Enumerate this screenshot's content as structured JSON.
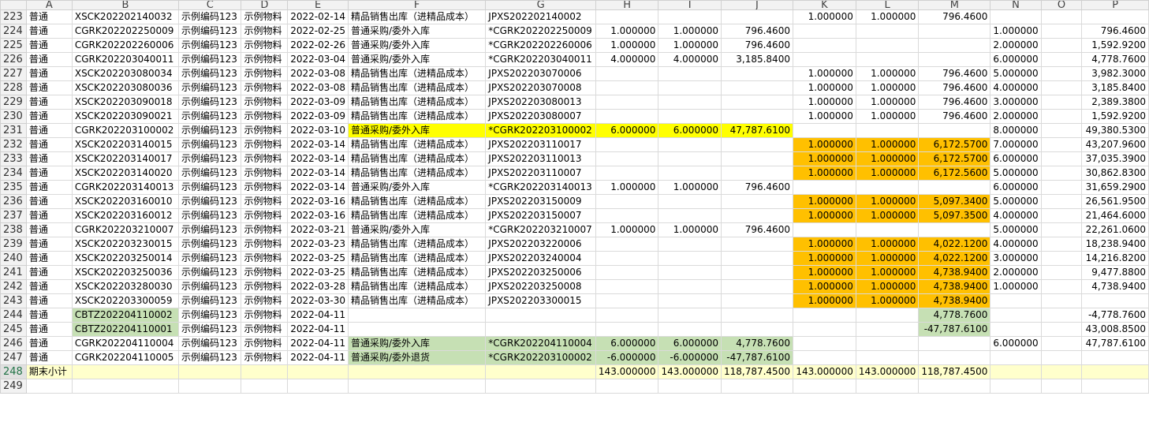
{
  "columns": [
    "A",
    "B",
    "C",
    "D",
    "E",
    "F",
    "G",
    "H",
    "I",
    "J",
    "K",
    "L",
    "M",
    "N",
    "O",
    "P"
  ],
  "rows": [
    {
      "n": "223",
      "cells": [
        "普通",
        "XSCK202202140032",
        "示例编码123",
        "示例物料",
        "2022-02-14",
        "精品销售出库（进精品成本）",
        "JPXS202202140002",
        "",
        "",
        "",
        "1.000000",
        "1.000000",
        "796.4600",
        "",
        "",
        ""
      ]
    },
    {
      "n": "224",
      "cells": [
        "普通",
        "CGRK202202250009",
        "示例编码123",
        "示例物料",
        "2022-02-25",
        "普通采购/委外入库",
        "*CGRK202202250009",
        "1.000000",
        "1.000000",
        "796.4600",
        "",
        "",
        "",
        "1.000000",
        "",
        "796.4600"
      ]
    },
    {
      "n": "225",
      "cells": [
        "普通",
        "CGRK202202260006",
        "示例编码123",
        "示例物料",
        "2022-02-26",
        "普通采购/委外入库",
        "*CGRK202202260006",
        "1.000000",
        "1.000000",
        "796.4600",
        "",
        "",
        "",
        "2.000000",
        "",
        "1,592.9200"
      ]
    },
    {
      "n": "226",
      "cells": [
        "普通",
        "CGRK202203040011",
        "示例编码123",
        "示例物料",
        "2022-03-04",
        "普通采购/委外入库",
        "*CGRK202203040011",
        "4.000000",
        "4.000000",
        "3,185.8400",
        "",
        "",
        "",
        "6.000000",
        "",
        "4,778.7600"
      ]
    },
    {
      "n": "227",
      "cells": [
        "普通",
        "XSCK202203080034",
        "示例编码123",
        "示例物料",
        "2022-03-08",
        "精品销售出库（进精品成本）",
        "JPXS202203070006",
        "",
        "",
        "",
        "1.000000",
        "1.000000",
        "796.4600",
        "5.000000",
        "",
        "3,982.3000"
      ]
    },
    {
      "n": "228",
      "cells": [
        "普通",
        "XSCK202203080036",
        "示例编码123",
        "示例物料",
        "2022-03-08",
        "精品销售出库（进精品成本）",
        "JPXS202203070008",
        "",
        "",
        "",
        "1.000000",
        "1.000000",
        "796.4600",
        "4.000000",
        "",
        "3,185.8400"
      ]
    },
    {
      "n": "229",
      "cells": [
        "普通",
        "XSCK202203090018",
        "示例编码123",
        "示例物料",
        "2022-03-09",
        "精品销售出库（进精品成本）",
        "JPXS202203080013",
        "",
        "",
        "",
        "1.000000",
        "1.000000",
        "796.4600",
        "3.000000",
        "",
        "2,389.3800"
      ]
    },
    {
      "n": "230",
      "cells": [
        "普通",
        "XSCK202203090021",
        "示例编码123",
        "示例物料",
        "2022-03-09",
        "精品销售出库（进精品成本）",
        "JPXS202203080007",
        "",
        "",
        "",
        "1.000000",
        "1.000000",
        "796.4600",
        "2.000000",
        "",
        "1,592.9200"
      ]
    },
    {
      "n": "231",
      "cells": [
        "普通",
        "CGRK202203100002",
        "示例编码123",
        "示例物料",
        "2022-03-10",
        "普通采购/委外入库",
        "*CGRK202203100002",
        "6.000000",
        "6.000000",
        "47,787.6100",
        "",
        "",
        "",
        "8.000000",
        "",
        "49,380.5300"
      ]
    },
    {
      "n": "232",
      "cells": [
        "普通",
        "XSCK202203140015",
        "示例编码123",
        "示例物料",
        "2022-03-14",
        "精品销售出库（进精品成本）",
        "JPXS202203110017",
        "",
        "",
        "",
        "1.000000",
        "1.000000",
        "6,172.5700",
        "7.000000",
        "",
        "43,207.9600"
      ]
    },
    {
      "n": "233",
      "cells": [
        "普通",
        "XSCK202203140017",
        "示例编码123",
        "示例物料",
        "2022-03-14",
        "精品销售出库（进精品成本）",
        "JPXS202203110013",
        "",
        "",
        "",
        "1.000000",
        "1.000000",
        "6,172.5700",
        "6.000000",
        "",
        "37,035.3900"
      ]
    },
    {
      "n": "234",
      "cells": [
        "普通",
        "XSCK202203140020",
        "示例编码123",
        "示例物料",
        "2022-03-14",
        "精品销售出库（进精品成本）",
        "JPXS202203110007",
        "",
        "",
        "",
        "1.000000",
        "1.000000",
        "6,172.5600",
        "5.000000",
        "",
        "30,862.8300"
      ]
    },
    {
      "n": "235",
      "cells": [
        "普通",
        "CGRK202203140013",
        "示例编码123",
        "示例物料",
        "2022-03-14",
        "普通采购/委外入库",
        "*CGRK202203140013",
        "1.000000",
        "1.000000",
        "796.4600",
        "",
        "",
        "",
        "6.000000",
        "",
        "31,659.2900"
      ]
    },
    {
      "n": "236",
      "cells": [
        "普通",
        "XSCK202203160010",
        "示例编码123",
        "示例物料",
        "2022-03-16",
        "精品销售出库（进精品成本）",
        "JPXS202203150009",
        "",
        "",
        "",
        "1.000000",
        "1.000000",
        "5,097.3400",
        "5.000000",
        "",
        "26,561.9500"
      ]
    },
    {
      "n": "237",
      "cells": [
        "普通",
        "XSCK202203160012",
        "示例编码123",
        "示例物料",
        "2022-03-16",
        "精品销售出库（进精品成本）",
        "JPXS202203150007",
        "",
        "",
        "",
        "1.000000",
        "1.000000",
        "5,097.3500",
        "4.000000",
        "",
        "21,464.6000"
      ]
    },
    {
      "n": "238",
      "cells": [
        "普通",
        "CGRK202203210007",
        "示例编码123",
        "示例物料",
        "2022-03-21",
        "普通采购/委外入库",
        "*CGRK202203210007",
        "1.000000",
        "1.000000",
        "796.4600",
        "",
        "",
        "",
        "5.000000",
        "",
        "22,261.0600"
      ]
    },
    {
      "n": "239",
      "cells": [
        "普通",
        "XSCK202203230015",
        "示例编码123",
        "示例物料",
        "2022-03-23",
        "精品销售出库（进精品成本）",
        "JPXS202203220006",
        "",
        "",
        "",
        "1.000000",
        "1.000000",
        "4,022.1200",
        "4.000000",
        "",
        "18,238.9400"
      ]
    },
    {
      "n": "240",
      "cells": [
        "普通",
        "XSCK202203250014",
        "示例编码123",
        "示例物料",
        "2022-03-25",
        "精品销售出库（进精品成本）",
        "JPXS202203240004",
        "",
        "",
        "",
        "1.000000",
        "1.000000",
        "4,022.1200",
        "3.000000",
        "",
        "14,216.8200"
      ]
    },
    {
      "n": "241",
      "cells": [
        "普通",
        "XSCK202203250036",
        "示例编码123",
        "示例物料",
        "2022-03-25",
        "精品销售出库（进精品成本）",
        "JPXS202203250006",
        "",
        "",
        "",
        "1.000000",
        "1.000000",
        "4,738.9400",
        "2.000000",
        "",
        "9,477.8800"
      ]
    },
    {
      "n": "242",
      "cells": [
        "普通",
        "XSCK202203280030",
        "示例编码123",
        "示例物料",
        "2022-03-28",
        "精品销售出库（进精品成本）",
        "JPXS202203250008",
        "",
        "",
        "",
        "1.000000",
        "1.000000",
        "4,738.9400",
        "1.000000",
        "",
        "4,738.9400"
      ]
    },
    {
      "n": "243",
      "cells": [
        "普通",
        "XSCK202203300059",
        "示例编码123",
        "示例物料",
        "2022-03-30",
        "精品销售出库（进精品成本）",
        "JPXS202203300015",
        "",
        "",
        "",
        "1.000000",
        "1.000000",
        "4,738.9400",
        "",
        "",
        ""
      ]
    },
    {
      "n": "244",
      "cells": [
        "普通",
        "CBTZ202204110002",
        "示例编码123",
        "示例物料",
        "2022-04-11",
        "",
        "",
        "",
        "",
        "",
        "",
        "",
        "4,778.7600",
        "",
        "",
        "-4,778.7600"
      ]
    },
    {
      "n": "245",
      "cells": [
        "普通",
        "CBTZ202204110001",
        "示例编码123",
        "示例物料",
        "2022-04-11",
        "",
        "",
        "",
        "",
        "",
        "",
        "",
        "-47,787.6100",
        "",
        "",
        "43,008.8500"
      ]
    },
    {
      "n": "246",
      "cells": [
        "普通",
        "CGRK202204110004",
        "示例编码123",
        "示例物料",
        "2022-04-11",
        "普通采购/委外入库",
        "*CGRK202204110004",
        "6.000000",
        "6.000000",
        "4,778.7600",
        "",
        "",
        "",
        "6.000000",
        "",
        "47,787.6100"
      ]
    },
    {
      "n": "247",
      "cells": [
        "普通",
        "CGRK202204110005",
        "示例编码123",
        "示例物料",
        "2022-04-11",
        "普通采购/委外退货",
        "*CGRK202203100002",
        "-6.000000",
        "-6.000000",
        "-47,787.6100",
        "",
        "",
        "",
        "",
        "",
        ""
      ]
    },
    {
      "n": "248",
      "cells": [
        "期末小计",
        "",
        "",
        "",
        "",
        "",
        "",
        "143.000000",
        "143.000000",
        "118,787.4500",
        "143.000000",
        "143.000000",
        "118,787.4500",
        "",
        "",
        ""
      ]
    },
    {
      "n": "249",
      "cells": [
        "",
        "",
        "",
        "",
        "",
        "",
        "",
        "",
        "",
        "",
        "",
        "",
        "",
        "",
        "",
        ""
      ]
    }
  ]
}
